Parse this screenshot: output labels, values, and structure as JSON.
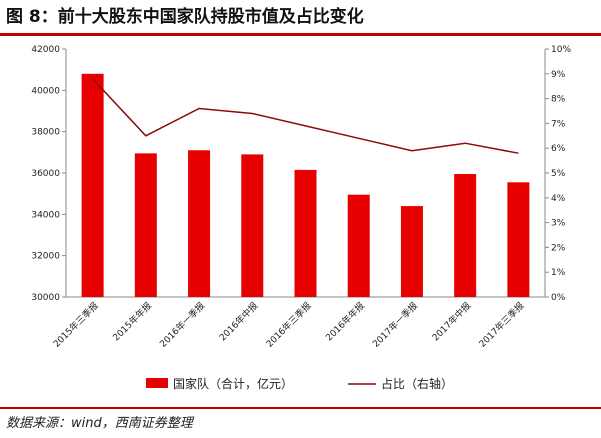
{
  "title": "图 8：前十大股东中国家队持股市值及占比变化",
  "source": "数据来源：wind，西南证券整理",
  "colors": {
    "accent": "#c00000",
    "bar": "#e60000",
    "line": "#8b0a0a"
  },
  "chart_data": {
    "type": "bar",
    "categories": [
      "2015年三季报",
      "2015年年报",
      "2016年一季报",
      "2016年中报",
      "2016年三季报",
      "2016年年报",
      "2017年一季报",
      "2017年中报",
      "2017年三季报"
    ],
    "series": [
      {
        "name": "国家队（合计，亿元）",
        "type": "bar",
        "axis": "left",
        "values": [
          40800,
          36950,
          37100,
          36900,
          36150,
          34950,
          34400,
          35950,
          35550
        ]
      },
      {
        "name": "占比（右轴）",
        "type": "line",
        "axis": "right",
        "values": [
          0.088,
          0.065,
          0.076,
          0.074,
          0.069,
          0.064,
          0.059,
          0.062,
          0.058
        ]
      }
    ],
    "yleft": {
      "min": 30000,
      "max": 42000,
      "ticks": [
        "30000",
        "32000",
        "34000",
        "36000",
        "38000",
        "40000",
        "42000"
      ]
    },
    "yright": {
      "min": 0,
      "max": 0.1,
      "ticks": [
        "0%",
        "1%",
        "2%",
        "3%",
        "4%",
        "5%",
        "6%",
        "7%",
        "8%",
        "9%",
        "10%"
      ]
    },
    "grid": false,
    "legend": "bottom"
  }
}
